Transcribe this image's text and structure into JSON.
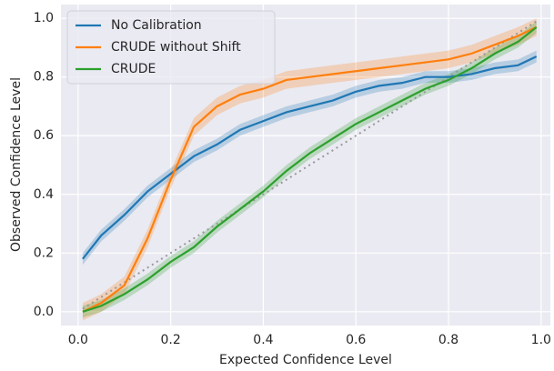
{
  "chart_data": {
    "type": "line",
    "x": [
      0.01,
      0.05,
      0.1,
      0.15,
      0.2,
      0.25,
      0.3,
      0.35,
      0.4,
      0.45,
      0.5,
      0.55,
      0.6,
      0.65,
      0.7,
      0.75,
      0.8,
      0.85,
      0.9,
      0.95,
      0.99
    ],
    "series": [
      {
        "name": "No Calibration",
        "color": "#1f77b4",
        "err": 0.02,
        "values": [
          0.18,
          0.26,
          0.33,
          0.41,
          0.47,
          0.53,
          0.57,
          0.62,
          0.65,
          0.68,
          0.7,
          0.72,
          0.75,
          0.77,
          0.78,
          0.8,
          0.8,
          0.81,
          0.83,
          0.84,
          0.87
        ]
      },
      {
        "name": "CRUDE without Shift",
        "color": "#ff7f0e",
        "err": 0.03,
        "values": [
          0.0,
          0.03,
          0.09,
          0.25,
          0.45,
          0.63,
          0.7,
          0.74,
          0.76,
          0.79,
          0.8,
          0.81,
          0.82,
          0.83,
          0.84,
          0.85,
          0.86,
          0.88,
          0.91,
          0.94,
          0.97
        ]
      },
      {
        "name": "CRUDE",
        "color": "#2ca02c",
        "err": 0.02,
        "values": [
          0.0,
          0.02,
          0.06,
          0.11,
          0.17,
          0.22,
          0.29,
          0.35,
          0.41,
          0.48,
          0.54,
          0.59,
          0.64,
          0.68,
          0.72,
          0.76,
          0.79,
          0.83,
          0.88,
          0.92,
          0.97
        ]
      }
    ],
    "diagonal": {
      "x": [
        0.01,
        0.99
      ],
      "values": [
        0.01,
        0.99
      ],
      "color": "#999999"
    },
    "xlabel": "Expected Confidence Level",
    "ylabel": "Observed Confidence Level",
    "xlim": [
      -0.037,
      1.02
    ],
    "ylim": [
      -0.047,
      1.047
    ],
    "xticks": [
      {
        "value": 0,
        "label": "0.0"
      },
      0.2,
      0.4,
      0.6,
      0.8,
      {
        "value": 1,
        "label": "1.0"
      }
    ],
    "yticks": [
      {
        "value": 0,
        "label": "0.0"
      },
      0.2,
      0.4,
      0.6,
      0.8,
      {
        "value": 1,
        "label": "1.0"
      }
    ],
    "grid": true,
    "legend": "upper left"
  }
}
